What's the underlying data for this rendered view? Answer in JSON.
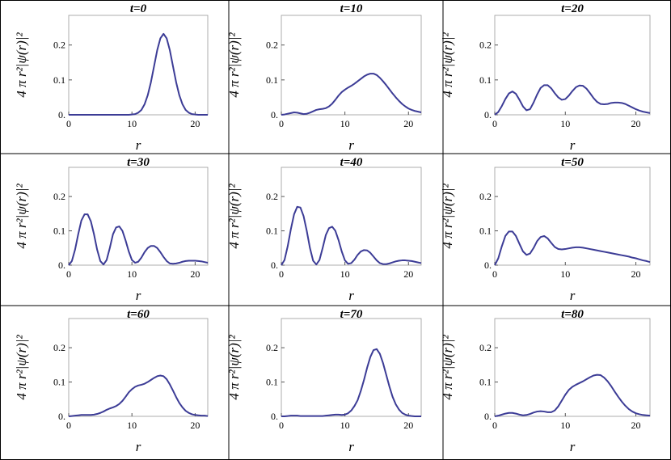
{
  "chart_data": [
    {
      "type": "line",
      "title": "t=0",
      "x_label": "r",
      "y_label": "4 π r²|ψ(r)|²",
      "color": "#3c3c96",
      "xlim": [
        0,
        22
      ],
      "ylim": [
        0,
        0.285
      ],
      "xticks": [
        0,
        10,
        20
      ],
      "yticks": [
        {
          "value": 0,
          "label": "0."
        },
        0.1,
        0.2
      ],
      "x": [
        0,
        0.5,
        1,
        1.5,
        2,
        2.5,
        3,
        3.5,
        4,
        4.5,
        5,
        5.5,
        6,
        6.5,
        7,
        7.5,
        8,
        8.5,
        9,
        9.5,
        10,
        10.5,
        11,
        11.5,
        12,
        12.5,
        13,
        13.5,
        14,
        14.5,
        15,
        15.5,
        16,
        16.5,
        17,
        17.5,
        18,
        18.5,
        19,
        19.5,
        20,
        20.5,
        21,
        21.5,
        22
      ],
      "values": [
        0,
        0,
        0,
        0,
        0,
        0,
        0,
        0,
        0,
        0,
        0,
        0,
        0,
        0,
        0,
        0,
        0,
        0,
        0,
        0,
        0.001,
        0.002,
        0.006,
        0.014,
        0.03,
        0.056,
        0.093,
        0.139,
        0.185,
        0.219,
        0.232,
        0.219,
        0.185,
        0.139,
        0.093,
        0.056,
        0.03,
        0.014,
        0.006,
        0.002,
        0.001,
        0,
        0,
        0,
        0
      ]
    },
    {
      "type": "line",
      "title": "t=10",
      "x_label": "r",
      "y_label": "4 π r²|ψ(r)|²",
      "color": "#3c3c96",
      "xlim": [
        0,
        22
      ],
      "ylim": [
        0,
        0.285
      ],
      "xticks": [
        0,
        10,
        20
      ],
      "yticks": [
        {
          "value": 0,
          "label": "0."
        },
        0.1,
        0.2
      ],
      "x": [
        0,
        0.5,
        1,
        1.5,
        2,
        2.5,
        3,
        3.5,
        4,
        4.5,
        5,
        5.5,
        6,
        6.5,
        7,
        7.5,
        8,
        8.5,
        9,
        9.5,
        10,
        10.5,
        11,
        11.5,
        12,
        12.5,
        13,
        13.5,
        14,
        14.5,
        15,
        15.5,
        16,
        16.5,
        17,
        17.5,
        18,
        18.5,
        19,
        19.5,
        20,
        20.5,
        21,
        21.5,
        22
      ],
      "values": [
        0,
        0.001,
        0.003,
        0.005,
        0.007,
        0.006,
        0.004,
        0.002,
        0.003,
        0.006,
        0.01,
        0.014,
        0.016,
        0.017,
        0.019,
        0.024,
        0.032,
        0.043,
        0.055,
        0.065,
        0.072,
        0.078,
        0.083,
        0.089,
        0.096,
        0.103,
        0.11,
        0.115,
        0.118,
        0.118,
        0.114,
        0.106,
        0.096,
        0.085,
        0.073,
        0.061,
        0.05,
        0.04,
        0.031,
        0.024,
        0.018,
        0.014,
        0.011,
        0.009,
        0.007
      ]
    },
    {
      "type": "line",
      "title": "t=20",
      "x_label": "r",
      "y_label": "4 π r²|ψ(r)|²",
      "color": "#3c3c96",
      "xlim": [
        0,
        22
      ],
      "ylim": [
        0,
        0.285
      ],
      "xticks": [
        0,
        10,
        20
      ],
      "yticks": [
        {
          "value": 0,
          "label": "0."
        },
        0.1,
        0.2
      ],
      "x": [
        0,
        0.5,
        1,
        1.5,
        2,
        2.5,
        3,
        3.5,
        4,
        4.5,
        5,
        5.5,
        6,
        6.5,
        7,
        7.5,
        8,
        8.5,
        9,
        9.5,
        10,
        10.5,
        11,
        11.5,
        12,
        12.5,
        13,
        13.5,
        14,
        14.5,
        15,
        15.5,
        16,
        16.5,
        17,
        17.5,
        18,
        18.5,
        19,
        19.5,
        20,
        20.5,
        21,
        21.5,
        22
      ],
      "values": [
        0,
        0.008,
        0.025,
        0.045,
        0.061,
        0.067,
        0.06,
        0.043,
        0.024,
        0.013,
        0.016,
        0.035,
        0.058,
        0.077,
        0.085,
        0.085,
        0.076,
        0.062,
        0.05,
        0.043,
        0.045,
        0.055,
        0.068,
        0.079,
        0.084,
        0.083,
        0.075,
        0.062,
        0.048,
        0.037,
        0.031,
        0.03,
        0.031,
        0.034,
        0.035,
        0.035,
        0.034,
        0.031,
        0.026,
        0.021,
        0.016,
        0.012,
        0.009,
        0.007,
        0.005
      ]
    },
    {
      "type": "line",
      "title": "t=30",
      "x_label": "r",
      "y_label": "4 π r²|ψ(r)|²",
      "color": "#3c3c96",
      "xlim": [
        0,
        22
      ],
      "ylim": [
        0,
        0.285
      ],
      "xticks": [
        0,
        10,
        20
      ],
      "yticks": [
        {
          "value": 0,
          "label": "0."
        },
        0.1,
        0.2
      ],
      "x": [
        0,
        0.5,
        1,
        1.5,
        2,
        2.5,
        3,
        3.5,
        4,
        4.5,
        5,
        5.5,
        6,
        6.5,
        7,
        7.5,
        8,
        8.5,
        9,
        9.5,
        10,
        10.5,
        11,
        11.5,
        12,
        12.5,
        13,
        13.5,
        14,
        14.5,
        15,
        15.5,
        16,
        16.5,
        17,
        17.5,
        18,
        18.5,
        19,
        19.5,
        20,
        20.5,
        21,
        21.5,
        22
      ],
      "values": [
        0,
        0.012,
        0.045,
        0.09,
        0.13,
        0.148,
        0.148,
        0.128,
        0.09,
        0.045,
        0.012,
        0.002,
        0.015,
        0.05,
        0.09,
        0.11,
        0.113,
        0.1,
        0.072,
        0.04,
        0.015,
        0.007,
        0.01,
        0.022,
        0.038,
        0.05,
        0.056,
        0.056,
        0.05,
        0.038,
        0.024,
        0.012,
        0.005,
        0.004,
        0.005,
        0.007,
        0.01,
        0.012,
        0.013,
        0.013,
        0.013,
        0.012,
        0.011,
        0.009,
        0.007
      ]
    },
    {
      "type": "line",
      "title": "t=40",
      "x_label": "r",
      "y_label": "4 π r²|ψ(r)|²",
      "color": "#3c3c96",
      "xlim": [
        0,
        22
      ],
      "ylim": [
        0,
        0.285
      ],
      "xticks": [
        0,
        10,
        20
      ],
      "yticks": [
        {
          "value": 0,
          "label": "0."
        },
        0.1,
        0.2
      ],
      "x": [
        0,
        0.5,
        1,
        1.5,
        2,
        2.5,
        3,
        3.5,
        4,
        4.5,
        5,
        5.5,
        6,
        6.5,
        7,
        7.5,
        8,
        8.5,
        9,
        9.5,
        10,
        10.5,
        11,
        11.5,
        12,
        12.5,
        13,
        13.5,
        14,
        14.5,
        15,
        15.5,
        16,
        16.5,
        17,
        17.5,
        18,
        18.5,
        19,
        19.5,
        20,
        20.5,
        21,
        21.5,
        22
      ],
      "values": [
        0,
        0.015,
        0.055,
        0.105,
        0.148,
        0.17,
        0.168,
        0.143,
        0.1,
        0.05,
        0.013,
        0.002,
        0.015,
        0.05,
        0.088,
        0.108,
        0.112,
        0.1,
        0.073,
        0.04,
        0.014,
        0.004,
        0.006,
        0.016,
        0.03,
        0.04,
        0.044,
        0.043,
        0.036,
        0.025,
        0.014,
        0.006,
        0.003,
        0.003,
        0.005,
        0.008,
        0.011,
        0.013,
        0.014,
        0.014,
        0.013,
        0.012,
        0.01,
        0.008,
        0.006
      ]
    },
    {
      "type": "line",
      "title": "t=50",
      "x_label": "r",
      "y_label": "4 π r²|ψ(r)|²",
      "color": "#3c3c96",
      "xlim": [
        0,
        22
      ],
      "ylim": [
        0,
        0.285
      ],
      "xticks": [
        0,
        10,
        20
      ],
      "yticks": [
        {
          "value": 0,
          "label": "0."
        },
        0.1,
        0.2
      ],
      "x": [
        0,
        0.5,
        1,
        1.5,
        2,
        2.5,
        3,
        3.5,
        4,
        4.5,
        5,
        5.5,
        6,
        6.5,
        7,
        7.5,
        8,
        8.5,
        9,
        9.5,
        10,
        10.5,
        11,
        11.5,
        12,
        12.5,
        13,
        13.5,
        14,
        14.5,
        15,
        15.5,
        16,
        16.5,
        17,
        17.5,
        18,
        18.5,
        19,
        19.5,
        20,
        20.5,
        21,
        21.5,
        22
      ],
      "values": [
        0,
        0.02,
        0.055,
        0.085,
        0.098,
        0.098,
        0.085,
        0.062,
        0.04,
        0.03,
        0.034,
        0.05,
        0.07,
        0.082,
        0.085,
        0.078,
        0.065,
        0.053,
        0.047,
        0.046,
        0.047,
        0.049,
        0.051,
        0.052,
        0.052,
        0.051,
        0.049,
        0.047,
        0.045,
        0.043,
        0.041,
        0.039,
        0.037,
        0.035,
        0.033,
        0.031,
        0.029,
        0.027,
        0.025,
        0.022,
        0.02,
        0.017,
        0.014,
        0.012,
        0.009
      ]
    },
    {
      "type": "line",
      "title": "t=60",
      "x_label": "r",
      "y_label": "4 π r²|ψ(r)|²",
      "color": "#3c3c96",
      "xlim": [
        0,
        22
      ],
      "ylim": [
        0,
        0.285
      ],
      "xticks": [
        0,
        10,
        20
      ],
      "yticks": [
        {
          "value": 0,
          "label": "0."
        },
        0.1,
        0.2
      ],
      "x": [
        0,
        0.5,
        1,
        1.5,
        2,
        2.5,
        3,
        3.5,
        4,
        4.5,
        5,
        5.5,
        6,
        6.5,
        7,
        7.5,
        8,
        8.5,
        9,
        9.5,
        10,
        10.5,
        11,
        11.5,
        12,
        12.5,
        13,
        13.5,
        14,
        14.5,
        15,
        15.5,
        16,
        16.5,
        17,
        17.5,
        18,
        18.5,
        19,
        19.5,
        20,
        20.5,
        21,
        21.5,
        22
      ],
      "values": [
        0,
        0.001,
        0.002,
        0.003,
        0.004,
        0.004,
        0.004,
        0.004,
        0.005,
        0.007,
        0.01,
        0.014,
        0.019,
        0.023,
        0.026,
        0.03,
        0.036,
        0.045,
        0.057,
        0.07,
        0.079,
        0.086,
        0.09,
        0.092,
        0.095,
        0.1,
        0.106,
        0.112,
        0.117,
        0.119,
        0.117,
        0.108,
        0.093,
        0.075,
        0.056,
        0.039,
        0.026,
        0.016,
        0.01,
        0.006,
        0.004,
        0.003,
        0.002,
        0.002,
        0.001
      ]
    },
    {
      "type": "line",
      "title": "t=70",
      "x_label": "r",
      "y_label": "4 π r²|ψ(r)|²",
      "color": "#3c3c96",
      "xlim": [
        0,
        22
      ],
      "ylim": [
        0,
        0.285
      ],
      "xticks": [
        0,
        10,
        20
      ],
      "yticks": [
        {
          "value": 0,
          "label": "0."
        },
        0.1,
        0.2
      ],
      "x": [
        0,
        0.5,
        1,
        1.5,
        2,
        2.5,
        3,
        3.5,
        4,
        4.5,
        5,
        5.5,
        6,
        6.5,
        7,
        7.5,
        8,
        8.5,
        9,
        9.5,
        10,
        10.5,
        11,
        11.5,
        12,
        12.5,
        13,
        13.5,
        14,
        14.5,
        15,
        15.5,
        16,
        16.5,
        17,
        17.5,
        18,
        18.5,
        19,
        19.5,
        20,
        20.5,
        21,
        21.5,
        22
      ],
      "values": [
        0,
        0,
        0.001,
        0.002,
        0.002,
        0.002,
        0.001,
        0.001,
        0.001,
        0.001,
        0.001,
        0.001,
        0.001,
        0.001,
        0.002,
        0.003,
        0.004,
        0.005,
        0.005,
        0.004,
        0.005,
        0.009,
        0.017,
        0.03,
        0.047,
        0.074,
        0.106,
        0.142,
        0.173,
        0.193,
        0.196,
        0.182,
        0.155,
        0.121,
        0.087,
        0.057,
        0.035,
        0.02,
        0.01,
        0.005,
        0.002,
        0.001,
        0,
        0,
        0
      ]
    },
    {
      "type": "line",
      "title": "t=80",
      "x_label": "r",
      "y_label": "4 π r²|ψ(r)|²",
      "color": "#3c3c96",
      "xlim": [
        0,
        22
      ],
      "ylim": [
        0,
        0.285
      ],
      "xticks": [
        0,
        10,
        20
      ],
      "yticks": [
        {
          "value": 0,
          "label": "0."
        },
        0.1,
        0.2
      ],
      "x": [
        0,
        0.5,
        1,
        1.5,
        2,
        2.5,
        3,
        3.5,
        4,
        4.5,
        5,
        5.5,
        6,
        6.5,
        7,
        7.5,
        8,
        8.5,
        9,
        9.5,
        10,
        10.5,
        11,
        11.5,
        12,
        12.5,
        13,
        13.5,
        14,
        14.5,
        15,
        15.5,
        16,
        16.5,
        17,
        17.5,
        18,
        18.5,
        19,
        19.5,
        20,
        20.5,
        21,
        21.5,
        22
      ],
      "values": [
        0,
        0.002,
        0.005,
        0.008,
        0.01,
        0.01,
        0.008,
        0.005,
        0.003,
        0.004,
        0.007,
        0.011,
        0.014,
        0.015,
        0.014,
        0.012,
        0.012,
        0.017,
        0.029,
        0.046,
        0.063,
        0.077,
        0.086,
        0.092,
        0.097,
        0.102,
        0.108,
        0.114,
        0.119,
        0.121,
        0.12,
        0.113,
        0.102,
        0.088,
        0.072,
        0.057,
        0.043,
        0.031,
        0.021,
        0.014,
        0.009,
        0.006,
        0.004,
        0.003,
        0.002
      ]
    }
  ]
}
